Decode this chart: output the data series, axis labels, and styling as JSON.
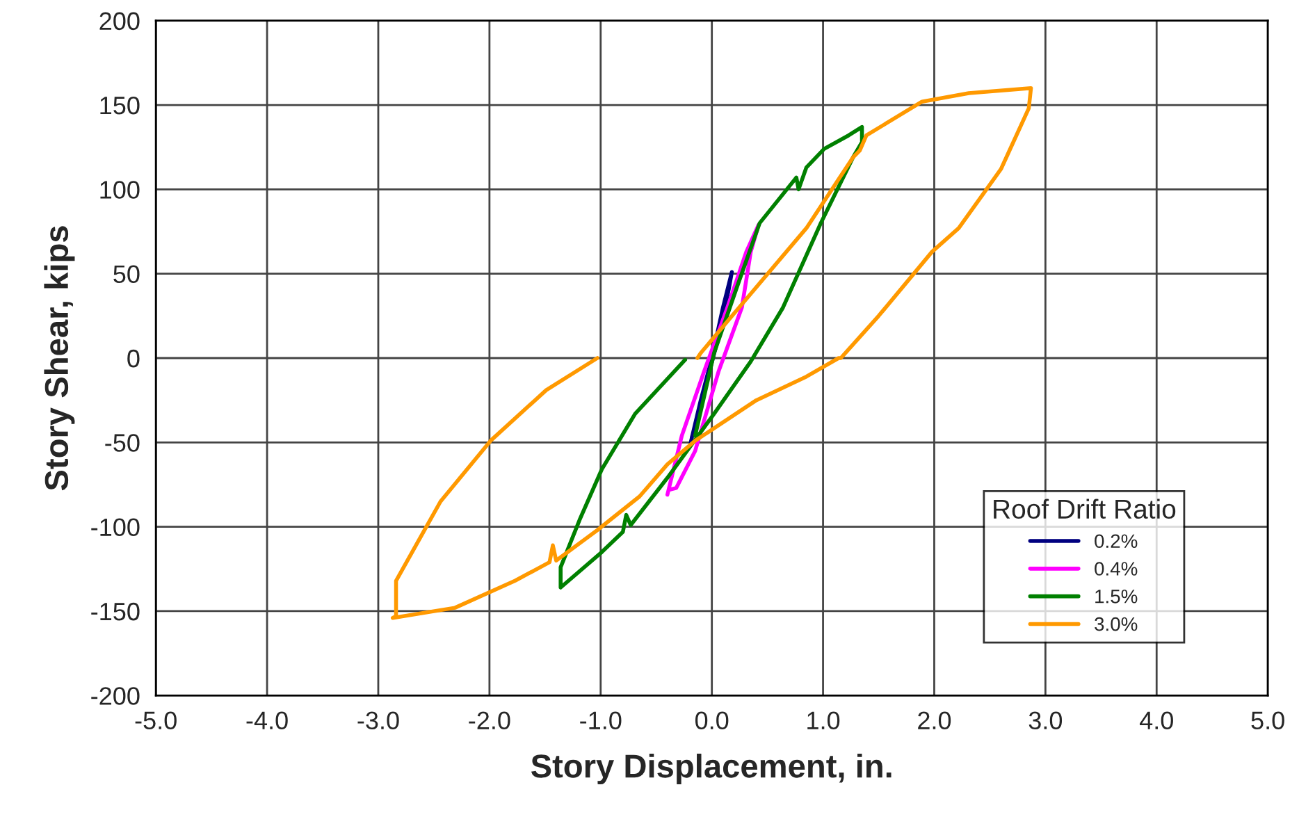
{
  "chart_data": {
    "type": "line",
    "xlabel": "Story Displacement, in.",
    "ylabel": "Story Shear, kips",
    "legend_title": "Roof Drift Ratio",
    "xlim": [
      -5,
      5
    ],
    "xticks": [
      {
        "value": -5,
        "label": "-5.0"
      },
      {
        "value": -4,
        "label": "-4.0"
      },
      {
        "value": -3,
        "label": "-3.0"
      },
      {
        "value": -2,
        "label": "-2.0"
      },
      {
        "value": -1,
        "label": "-1.0"
      },
      {
        "value": 0,
        "label": "0.0"
      },
      {
        "value": 1,
        "label": "1.0"
      },
      {
        "value": 2,
        "label": "2.0"
      },
      {
        "value": 3,
        "label": "3.0"
      },
      {
        "value": 4,
        "label": "4.0"
      },
      {
        "value": 5,
        "label": "5.0"
      }
    ],
    "ylim": [
      -200,
      200
    ],
    "yticks": [
      -200,
      -150,
      -100,
      -50,
      0,
      50,
      100,
      150,
      200
    ],
    "grid": true,
    "legend": "bottom right",
    "marker": "none",
    "line_style": "solid",
    "series": [
      {
        "name": "0.2%",
        "color": "#000080",
        "x": [
          -0.19,
          -0.1,
          0.0,
          0.1,
          0.18,
          0.15,
          0.05,
          -0.05,
          -0.15,
          -0.18
        ],
        "values": [
          -50,
          -25,
          0,
          30,
          51,
          40,
          10,
          -15,
          -40,
          -47
        ]
      },
      {
        "name": "0.4%",
        "color": "#ff00ff",
        "x": [
          -0.4,
          -0.27,
          -0.07,
          0.14,
          0.31,
          0.42,
          0.35,
          0.27,
          0.06,
          -0.15,
          -0.32,
          -0.38
        ],
        "values": [
          -81,
          -46,
          -8,
          30,
          63,
          79,
          63,
          30,
          -8,
          -55,
          -77,
          -78
        ]
      },
      {
        "name": "1.5%",
        "color": "#008000",
        "x": [
          -0.15,
          0.02,
          0.22,
          0.43,
          0.76,
          0.78,
          0.85,
          1.01,
          1.23,
          1.35,
          1.35,
          1.27,
          0.98,
          0.64,
          0.35,
          0.02,
          -0.4,
          -0.73,
          -0.77,
          -0.8,
          -0.99,
          -1.36,
          -1.36,
          -1.19,
          -0.99,
          -0.69,
          -0.24
        ],
        "values": [
          -46,
          3,
          41,
          80,
          107,
          100,
          113,
          124,
          132,
          137,
          128,
          119,
          80,
          30,
          -2,
          -33,
          -71,
          -99,
          -93,
          -103,
          -115,
          -136,
          -124,
          -96,
          -66,
          -33,
          -1
        ]
      },
      {
        "name": "3.0%",
        "color": "#ff9900",
        "x": [
          -1.03,
          -1.49,
          -1.99,
          -2.44,
          -2.84,
          -2.84,
          -2.87,
          -2.31,
          -1.77,
          -1.46,
          -1.43,
          -1.4,
          -1.03,
          -0.65,
          -0.4,
          -0.15,
          0.4,
          0.85,
          1.14,
          1.16,
          1.5,
          1.98,
          2.22,
          2.6,
          2.85,
          2.87,
          2.31,
          1.89,
          1.39,
          1.33,
          1.27,
          0.85,
          0.22,
          -0.1,
          -0.13
        ],
        "values": [
          0,
          -19,
          -49,
          -85,
          -132,
          -153,
          -154,
          -148,
          -132,
          -121,
          -111,
          -120,
          -102,
          -82,
          -63,
          -49,
          -25,
          -11,
          0,
          0,
          25,
          63,
          77,
          112,
          148,
          160,
          157,
          152,
          132,
          123,
          119,
          77,
          28,
          3,
          0
        ]
      }
    ]
  }
}
